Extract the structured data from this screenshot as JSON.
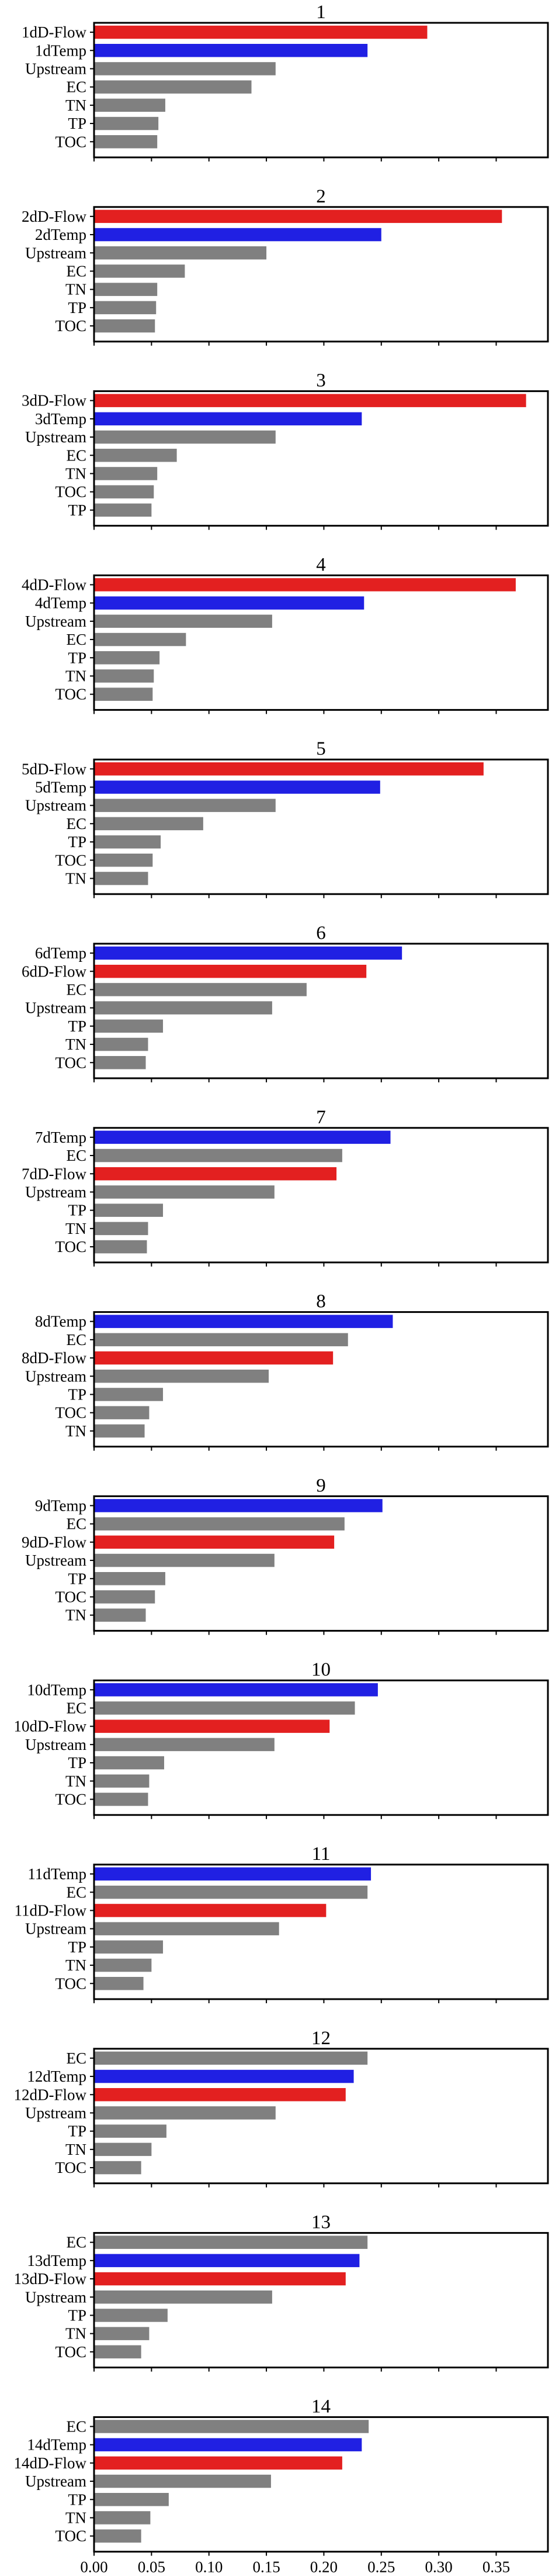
{
  "colors": {
    "flow": "#e32020",
    "temp": "#2020e3",
    "other": "#808080"
  },
  "chart_data": {
    "type": "bar",
    "orientation": "horizontal",
    "xlim": [
      0,
      0.395
    ],
    "xticks": [
      0.0,
      0.05,
      0.1,
      0.15,
      0.2,
      0.25,
      0.3,
      0.35
    ],
    "xtick_labels": [
      "0.00",
      "0.05",
      "0.10",
      "0.15",
      "0.20",
      "0.25",
      "0.30",
      "0.35"
    ],
    "grid": false,
    "panels": [
      {
        "title": "1",
        "bars": [
          {
            "label": "1dD-Flow",
            "value": 0.29,
            "group": "flow"
          },
          {
            "label": "1dTemp",
            "value": 0.238,
            "group": "temp"
          },
          {
            "label": "Upstream",
            "value": 0.158,
            "group": "other"
          },
          {
            "label": "EC",
            "value": 0.137,
            "group": "other"
          },
          {
            "label": "TN",
            "value": 0.062,
            "group": "other"
          },
          {
            "label": "TP",
            "value": 0.056,
            "group": "other"
          },
          {
            "label": "TOC",
            "value": 0.055,
            "group": "other"
          }
        ]
      },
      {
        "title": "2",
        "bars": [
          {
            "label": "2dD-Flow",
            "value": 0.355,
            "group": "flow"
          },
          {
            "label": "2dTemp",
            "value": 0.25,
            "group": "temp"
          },
          {
            "label": "Upstream",
            "value": 0.15,
            "group": "other"
          },
          {
            "label": "EC",
            "value": 0.079,
            "group": "other"
          },
          {
            "label": "TN",
            "value": 0.055,
            "group": "other"
          },
          {
            "label": "TP",
            "value": 0.054,
            "group": "other"
          },
          {
            "label": "TOC",
            "value": 0.053,
            "group": "other"
          }
        ]
      },
      {
        "title": "3",
        "bars": [
          {
            "label": "3dD-Flow",
            "value": 0.376,
            "group": "flow"
          },
          {
            "label": "3dTemp",
            "value": 0.233,
            "group": "temp"
          },
          {
            "label": "Upstream",
            "value": 0.158,
            "group": "other"
          },
          {
            "label": "EC",
            "value": 0.072,
            "group": "other"
          },
          {
            "label": "TN",
            "value": 0.055,
            "group": "other"
          },
          {
            "label": "TOC",
            "value": 0.052,
            "group": "other"
          },
          {
            "label": "TP",
            "value": 0.05,
            "group": "other"
          }
        ]
      },
      {
        "title": "4",
        "bars": [
          {
            "label": "4dD-Flow",
            "value": 0.367,
            "group": "flow"
          },
          {
            "label": "4dTemp",
            "value": 0.235,
            "group": "temp"
          },
          {
            "label": "Upstream",
            "value": 0.155,
            "group": "other"
          },
          {
            "label": "EC",
            "value": 0.08,
            "group": "other"
          },
          {
            "label": "TP",
            "value": 0.057,
            "group": "other"
          },
          {
            "label": "TN",
            "value": 0.052,
            "group": "other"
          },
          {
            "label": "TOC",
            "value": 0.051,
            "group": "other"
          }
        ]
      },
      {
        "title": "5",
        "bars": [
          {
            "label": "5dD-Flow",
            "value": 0.339,
            "group": "flow"
          },
          {
            "label": "5dTemp",
            "value": 0.249,
            "group": "temp"
          },
          {
            "label": "Upstream",
            "value": 0.158,
            "group": "other"
          },
          {
            "label": "EC",
            "value": 0.095,
            "group": "other"
          },
          {
            "label": "TP",
            "value": 0.058,
            "group": "other"
          },
          {
            "label": "TOC",
            "value": 0.051,
            "group": "other"
          },
          {
            "label": "TN",
            "value": 0.047,
            "group": "other"
          }
        ]
      },
      {
        "title": "6",
        "bars": [
          {
            "label": "6dTemp",
            "value": 0.268,
            "group": "temp"
          },
          {
            "label": "6dD-Flow",
            "value": 0.237,
            "group": "flow"
          },
          {
            "label": "EC",
            "value": 0.185,
            "group": "other"
          },
          {
            "label": "Upstream",
            "value": 0.155,
            "group": "other"
          },
          {
            "label": "TP",
            "value": 0.06,
            "group": "other"
          },
          {
            "label": "TN",
            "value": 0.047,
            "group": "other"
          },
          {
            "label": "TOC",
            "value": 0.045,
            "group": "other"
          }
        ]
      },
      {
        "title": "7",
        "bars": [
          {
            "label": "7dTemp",
            "value": 0.258,
            "group": "temp"
          },
          {
            "label": "EC",
            "value": 0.216,
            "group": "other"
          },
          {
            "label": "7dD-Flow",
            "value": 0.211,
            "group": "flow"
          },
          {
            "label": "Upstream",
            "value": 0.157,
            "group": "other"
          },
          {
            "label": "TP",
            "value": 0.06,
            "group": "other"
          },
          {
            "label": "TN",
            "value": 0.047,
            "group": "other"
          },
          {
            "label": "TOC",
            "value": 0.046,
            "group": "other"
          }
        ]
      },
      {
        "title": "8",
        "bars": [
          {
            "label": "8dTemp",
            "value": 0.26,
            "group": "temp"
          },
          {
            "label": "EC",
            "value": 0.221,
            "group": "other"
          },
          {
            "label": "8dD-Flow",
            "value": 0.208,
            "group": "flow"
          },
          {
            "label": "Upstream",
            "value": 0.152,
            "group": "other"
          },
          {
            "label": "TP",
            "value": 0.06,
            "group": "other"
          },
          {
            "label": "TOC",
            "value": 0.048,
            "group": "other"
          },
          {
            "label": "TN",
            "value": 0.044,
            "group": "other"
          }
        ]
      },
      {
        "title": "9",
        "bars": [
          {
            "label": "9dTemp",
            "value": 0.251,
            "group": "temp"
          },
          {
            "label": "EC",
            "value": 0.218,
            "group": "other"
          },
          {
            "label": "9dD-Flow",
            "value": 0.209,
            "group": "flow"
          },
          {
            "label": "Upstream",
            "value": 0.157,
            "group": "other"
          },
          {
            "label": "TP",
            "value": 0.062,
            "group": "other"
          },
          {
            "label": "TOC",
            "value": 0.053,
            "group": "other"
          },
          {
            "label": "TN",
            "value": 0.045,
            "group": "other"
          }
        ]
      },
      {
        "title": "10",
        "bars": [
          {
            "label": "10dTemp",
            "value": 0.247,
            "group": "temp"
          },
          {
            "label": "EC",
            "value": 0.227,
            "group": "other"
          },
          {
            "label": "10dD-Flow",
            "value": 0.205,
            "group": "flow"
          },
          {
            "label": "Upstream",
            "value": 0.157,
            "group": "other"
          },
          {
            "label": "TP",
            "value": 0.061,
            "group": "other"
          },
          {
            "label": "TN",
            "value": 0.048,
            "group": "other"
          },
          {
            "label": "TOC",
            "value": 0.047,
            "group": "other"
          }
        ]
      },
      {
        "title": "11",
        "bars": [
          {
            "label": "11dTemp",
            "value": 0.241,
            "group": "temp"
          },
          {
            "label": "EC",
            "value": 0.238,
            "group": "other"
          },
          {
            "label": "11dD-Flow",
            "value": 0.202,
            "group": "flow"
          },
          {
            "label": "Upstream",
            "value": 0.161,
            "group": "other"
          },
          {
            "label": "TP",
            "value": 0.06,
            "group": "other"
          },
          {
            "label": "TN",
            "value": 0.05,
            "group": "other"
          },
          {
            "label": "TOC",
            "value": 0.043,
            "group": "other"
          }
        ]
      },
      {
        "title": "12",
        "bars": [
          {
            "label": "EC",
            "value": 0.238,
            "group": "other"
          },
          {
            "label": "12dTemp",
            "value": 0.226,
            "group": "temp"
          },
          {
            "label": "12dD-Flow",
            "value": 0.219,
            "group": "flow"
          },
          {
            "label": "Upstream",
            "value": 0.158,
            "group": "other"
          },
          {
            "label": "TP",
            "value": 0.063,
            "group": "other"
          },
          {
            "label": "TN",
            "value": 0.05,
            "group": "other"
          },
          {
            "label": "TOC",
            "value": 0.041,
            "group": "other"
          }
        ]
      },
      {
        "title": "13",
        "bars": [
          {
            "label": "EC",
            "value": 0.238,
            "group": "other"
          },
          {
            "label": "13dTemp",
            "value": 0.231,
            "group": "temp"
          },
          {
            "label": "13dD-Flow",
            "value": 0.219,
            "group": "flow"
          },
          {
            "label": "Upstream",
            "value": 0.155,
            "group": "other"
          },
          {
            "label": "TP",
            "value": 0.064,
            "group": "other"
          },
          {
            "label": "TN",
            "value": 0.048,
            "group": "other"
          },
          {
            "label": "TOC",
            "value": 0.041,
            "group": "other"
          }
        ]
      },
      {
        "title": "14",
        "bars": [
          {
            "label": "EC",
            "value": 0.239,
            "group": "other"
          },
          {
            "label": "14dTemp",
            "value": 0.233,
            "group": "temp"
          },
          {
            "label": "14dD-Flow",
            "value": 0.216,
            "group": "flow"
          },
          {
            "label": "Upstream",
            "value": 0.154,
            "group": "other"
          },
          {
            "label": "TP",
            "value": 0.065,
            "group": "other"
          },
          {
            "label": "TN",
            "value": 0.049,
            "group": "other"
          },
          {
            "label": "TOC",
            "value": 0.041,
            "group": "other"
          }
        ]
      }
    ]
  }
}
